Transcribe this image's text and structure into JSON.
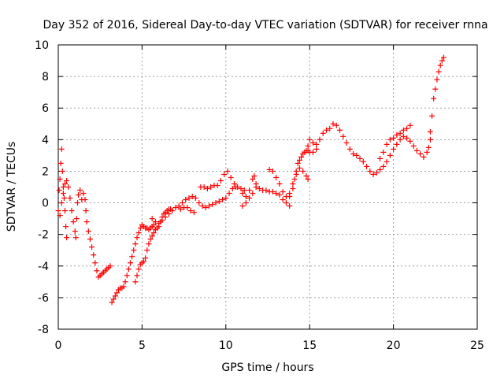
{
  "chart_data": {
    "type": "scatter",
    "title": "Day 352 of 2016, Sidereal Day-to-day VTEC variation (SDTVAR) for receiver rnna",
    "xlabel": "GPS time / hours",
    "ylabel": "SDTVAR / TECUs",
    "xlim": [
      0,
      25
    ],
    "ylim": [
      -8,
      10
    ],
    "xticks": [
      0,
      5,
      10,
      15,
      20,
      25
    ],
    "yticks": [
      -8,
      -6,
      -4,
      -2,
      0,
      2,
      4,
      6,
      8,
      10
    ],
    "grid": true,
    "marker": "+",
    "color": "#ff0000",
    "series": [
      {
        "points": [
          [
            0.0,
            -0.5
          ],
          [
            0.05,
            0.8
          ],
          [
            0.1,
            1.5
          ],
          [
            0.15,
            2.5
          ],
          [
            0.2,
            3.4
          ],
          [
            0.25,
            2.0
          ],
          [
            0.3,
            1.0
          ],
          [
            0.35,
            0.3
          ],
          [
            0.4,
            -0.5
          ],
          [
            0.45,
            -1.5
          ],
          [
            0.5,
            -2.2
          ],
          [
            0.1,
            -0.8
          ],
          [
            0.2,
            0.0
          ],
          [
            0.3,
            0.6
          ],
          [
            0.4,
            1.2
          ],
          [
            0.5,
            1.4
          ],
          [
            0.6,
            1.0
          ],
          [
            0.7,
            0.3
          ],
          [
            0.8,
            -0.5
          ],
          [
            0.9,
            -1.2
          ],
          [
            1.0,
            -1.8
          ],
          [
            1.05,
            -2.2
          ],
          [
            1.1,
            -1.0
          ],
          [
            1.15,
            0.0
          ],
          [
            1.2,
            0.5
          ],
          [
            1.3,
            0.8
          ],
          [
            1.4,
            0.2
          ],
          [
            1.5,
            0.6
          ],
          [
            1.6,
            0.2
          ],
          [
            1.65,
            -0.5
          ],
          [
            1.7,
            -1.2
          ],
          [
            1.8,
            -1.8
          ],
          [
            1.9,
            -2.3
          ],
          [
            2.0,
            -2.8
          ],
          [
            2.1,
            -3.3
          ],
          [
            2.2,
            -3.8
          ],
          [
            2.3,
            -4.3
          ],
          [
            2.4,
            -4.7
          ],
          [
            2.5,
            -4.6
          ],
          [
            2.6,
            -4.5
          ],
          [
            2.7,
            -4.4
          ],
          [
            2.8,
            -4.3
          ],
          [
            2.9,
            -4.2
          ],
          [
            3.0,
            -4.1
          ],
          [
            3.1,
            -4.0
          ],
          [
            3.2,
            -6.3
          ],
          [
            3.3,
            -6.1
          ],
          [
            3.4,
            -5.9
          ],
          [
            3.5,
            -5.7
          ],
          [
            3.6,
            -5.5
          ],
          [
            3.7,
            -5.4
          ],
          [
            3.8,
            -5.4
          ],
          [
            3.9,
            -5.3
          ],
          [
            4.0,
            -5.0
          ],
          [
            4.1,
            -4.6
          ],
          [
            4.2,
            -4.2
          ],
          [
            4.3,
            -3.8
          ],
          [
            4.4,
            -3.4
          ],
          [
            4.5,
            -3.0
          ],
          [
            4.6,
            -2.6
          ],
          [
            4.7,
            -2.2
          ],
          [
            4.8,
            -1.9
          ],
          [
            4.9,
            -1.6
          ],
          [
            5.0,
            -1.4
          ],
          [
            5.1,
            -1.5
          ],
          [
            5.2,
            -1.6
          ],
          [
            5.3,
            -1.6
          ],
          [
            5.4,
            -1.7
          ],
          [
            5.5,
            -1.6
          ],
          [
            5.6,
            -1.5
          ],
          [
            5.7,
            -1.4
          ],
          [
            4.6,
            -5.0
          ],
          [
            4.7,
            -4.6
          ],
          [
            4.8,
            -4.2
          ],
          [
            4.9,
            -3.9
          ],
          [
            5.0,
            -3.8
          ],
          [
            5.1,
            -3.7
          ],
          [
            5.2,
            -3.5
          ],
          [
            5.3,
            -3.0
          ],
          [
            5.4,
            -2.6
          ],
          [
            5.5,
            -2.3
          ],
          [
            5.6,
            -2.1
          ],
          [
            5.7,
            -1.9
          ],
          [
            5.8,
            -1.7
          ],
          [
            5.9,
            -1.6
          ],
          [
            6.0,
            -1.5
          ],
          [
            6.1,
            -1.2
          ],
          [
            6.2,
            -0.9
          ],
          [
            6.3,
            -0.7
          ],
          [
            6.4,
            -0.6
          ],
          [
            6.5,
            -0.5
          ],
          [
            6.6,
            -0.4
          ],
          [
            6.7,
            -0.4
          ],
          [
            5.6,
            -1.0
          ],
          [
            5.8,
            -1.2
          ],
          [
            6.0,
            -1.3
          ],
          [
            6.2,
            -1.1
          ],
          [
            6.4,
            -0.9
          ],
          [
            6.6,
            -0.7
          ],
          [
            6.8,
            -0.5
          ],
          [
            7.0,
            -0.3
          ],
          [
            7.2,
            -0.2
          ],
          [
            7.4,
            0.0
          ],
          [
            7.6,
            0.2
          ],
          [
            7.8,
            0.3
          ],
          [
            8.0,
            0.4
          ],
          [
            8.2,
            0.3
          ],
          [
            8.4,
            0.0
          ],
          [
            8.6,
            -0.2
          ],
          [
            8.8,
            -0.3
          ],
          [
            9.0,
            -0.2
          ],
          [
            9.2,
            -0.1
          ],
          [
            9.4,
            0.0
          ],
          [
            9.6,
            0.1
          ],
          [
            9.8,
            0.2
          ],
          [
            10.0,
            0.3
          ],
          [
            10.2,
            0.6
          ],
          [
            10.4,
            0.9
          ],
          [
            10.6,
            1.0
          ],
          [
            7.3,
            -0.4
          ],
          [
            7.5,
            -0.3
          ],
          [
            7.7,
            -0.3
          ],
          [
            7.9,
            -0.5
          ],
          [
            8.1,
            -0.6
          ],
          [
            8.5,
            1.0
          ],
          [
            8.7,
            1.0
          ],
          [
            8.9,
            0.9
          ],
          [
            9.1,
            1.0
          ],
          [
            9.3,
            1.1
          ],
          [
            9.5,
            1.1
          ],
          [
            9.7,
            1.4
          ],
          [
            9.9,
            1.8
          ],
          [
            10.1,
            2.0
          ],
          [
            10.3,
            1.6
          ],
          [
            10.5,
            1.2
          ],
          [
            10.7,
            1.0
          ],
          [
            10.9,
            0.9
          ],
          [
            11.1,
            0.8
          ],
          [
            11.0,
            0.6
          ],
          [
            11.2,
            0.4
          ],
          [
            11.4,
            0.8
          ],
          [
            11.6,
            1.5
          ],
          [
            11.7,
            1.7
          ],
          [
            11.8,
            1.2
          ],
          [
            12.0,
            0.9
          ],
          [
            12.2,
            0.8
          ],
          [
            12.4,
            0.8
          ],
          [
            12.6,
            0.7
          ],
          [
            12.8,
            0.7
          ],
          [
            13.0,
            0.6
          ],
          [
            13.2,
            0.5
          ],
          [
            13.4,
            0.2
          ],
          [
            13.6,
            0.0
          ],
          [
            13.8,
            -0.2
          ],
          [
            11.0,
            -0.2
          ],
          [
            11.2,
            0.0
          ],
          [
            11.4,
            0.3
          ],
          [
            11.6,
            0.6
          ],
          [
            11.8,
            1.0
          ],
          [
            12.6,
            2.1
          ],
          [
            12.8,
            2.0
          ],
          [
            13.0,
            1.6
          ],
          [
            13.2,
            1.2
          ],
          [
            13.4,
            0.7
          ],
          [
            13.6,
            0.4
          ],
          [
            13.8,
            0.6
          ],
          [
            14.0,
            1.2
          ],
          [
            14.2,
            1.8
          ],
          [
            14.4,
            2.2
          ],
          [
            14.6,
            2.0
          ],
          [
            14.8,
            1.7
          ],
          [
            14.9,
            1.5
          ],
          [
            13.8,
            0.4
          ],
          [
            14.0,
            0.9
          ],
          [
            14.1,
            1.5
          ],
          [
            14.2,
            2.0
          ],
          [
            14.3,
            2.5
          ],
          [
            14.4,
            2.7
          ],
          [
            14.5,
            2.9
          ],
          [
            14.6,
            3.1
          ],
          [
            14.7,
            3.2
          ],
          [
            14.8,
            3.3
          ],
          [
            14.9,
            3.3
          ],
          [
            15.0,
            3.2
          ],
          [
            15.2,
            3.2
          ],
          [
            15.4,
            3.4
          ],
          [
            14.9,
            3.6
          ],
          [
            15.0,
            4.0
          ],
          [
            15.2,
            3.8
          ],
          [
            15.4,
            3.7
          ],
          [
            15.6,
            4.0
          ],
          [
            15.8,
            4.4
          ],
          [
            16.0,
            4.6
          ],
          [
            16.2,
            4.7
          ],
          [
            16.4,
            5.0
          ],
          [
            16.6,
            4.9
          ],
          [
            16.8,
            4.6
          ],
          [
            17.0,
            4.2
          ],
          [
            17.2,
            3.8
          ],
          [
            17.4,
            3.4
          ],
          [
            17.6,
            3.1
          ],
          [
            17.8,
            3.0
          ],
          [
            18.0,
            2.8
          ],
          [
            18.2,
            2.6
          ],
          [
            18.4,
            2.3
          ],
          [
            18.6,
            2.0
          ],
          [
            18.8,
            1.8
          ],
          [
            19.0,
            1.9
          ],
          [
            19.2,
            2.1
          ],
          [
            19.4,
            2.3
          ],
          [
            19.6,
            2.6
          ],
          [
            19.8,
            3.0
          ],
          [
            20.0,
            3.4
          ],
          [
            20.2,
            3.7
          ],
          [
            20.4,
            4.0
          ],
          [
            20.6,
            4.2
          ],
          [
            20.8,
            4.1
          ],
          [
            21.0,
            3.9
          ],
          [
            21.2,
            3.6
          ],
          [
            21.4,
            3.3
          ],
          [
            21.6,
            3.1
          ],
          [
            21.8,
            2.9
          ],
          [
            22.0,
            3.2
          ],
          [
            22.1,
            3.5
          ],
          [
            22.2,
            4.0
          ],
          [
            19.2,
            2.8
          ],
          [
            19.4,
            3.2
          ],
          [
            19.6,
            3.7
          ],
          [
            19.8,
            4.0
          ],
          [
            20.0,
            4.1
          ],
          [
            20.2,
            4.3
          ],
          [
            20.4,
            4.4
          ],
          [
            20.6,
            4.6
          ],
          [
            20.8,
            4.7
          ],
          [
            21.0,
            4.9
          ],
          [
            22.2,
            4.5
          ],
          [
            22.3,
            5.5
          ],
          [
            22.4,
            6.6
          ],
          [
            22.5,
            7.2
          ],
          [
            22.6,
            7.8
          ],
          [
            22.7,
            8.3
          ],
          [
            22.8,
            8.7
          ],
          [
            22.9,
            9.0
          ],
          [
            23.0,
            9.2
          ]
        ]
      }
    ]
  }
}
